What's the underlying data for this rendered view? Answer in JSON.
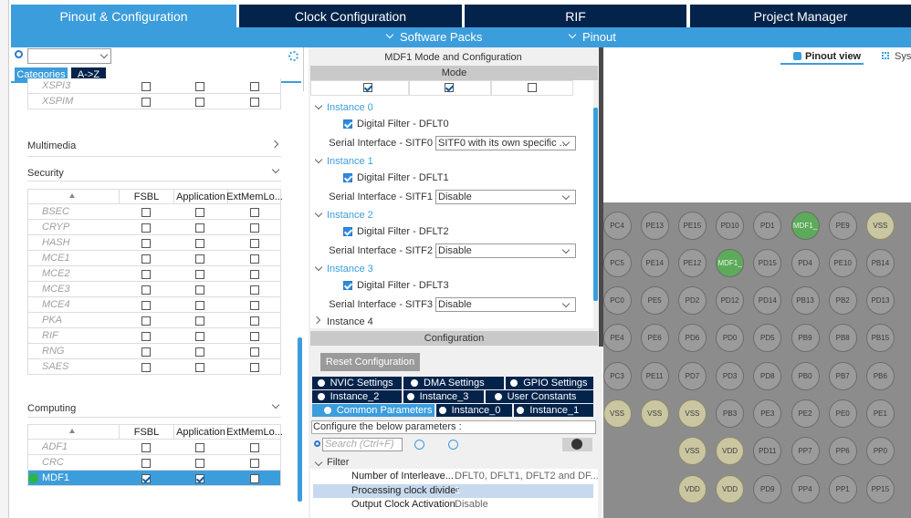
{
  "tabs": [
    "Pinout & Configuration",
    "Clock Configuration",
    "RIF",
    "Project Manager"
  ],
  "subtabs": [
    "Software Packs",
    "Pinout"
  ],
  "left": {
    "view_tabs": [
      "Categories",
      "A->Z"
    ],
    "prev_rows": [
      "XSPI3",
      "XSPIM"
    ],
    "multimedia": "Multimedia",
    "security": {
      "title": "Security",
      "columns": [
        "FSBL",
        "Application",
        "ExtMemLo..."
      ],
      "rows": [
        "BSEC",
        "CRYP",
        "HASH",
        "MCE1",
        "MCE2",
        "MCE3",
        "MCE4",
        "PKA",
        "RIF",
        "RNG",
        "SAES"
      ]
    },
    "computing": {
      "title": "Computing",
      "columns": [
        "FSBL",
        "Application",
        "ExtMemLo..."
      ],
      "rows": [
        "ADF1",
        "CRC",
        "MDF1"
      ]
    }
  },
  "middle": {
    "title": "MDF1 Mode and Configuration",
    "mode": "Mode",
    "instances": [
      {
        "title": "Instance 0",
        "filter": "Digital Filter - DFLT0",
        "serial_label": "Serial Interface - SITF0",
        "serial_value": "SITF0 with its own specific ..."
      },
      {
        "title": "Instance 1",
        "filter": "Digital Filter - DFLT1",
        "serial_label": "Serial Interface - SITF1",
        "serial_value": "Disable"
      },
      {
        "title": "Instance 2",
        "filter": "Digital Filter - DFLT2",
        "serial_label": "Serial Interface - SITF2",
        "serial_value": "Disable"
      },
      {
        "title": "Instance 3",
        "filter": "Digital Filter - DFLT3",
        "serial_label": "Serial Interface - SITF3",
        "serial_value": "Disable"
      }
    ],
    "instance_4": "Instance 4",
    "configuration": "Configuration",
    "reset": "Reset Configuration",
    "config_tabs": [
      [
        "NVIC Settings",
        "DMA Settings",
        "GPIO Settings"
      ],
      [
        "Instance_2",
        "Instance_3",
        "User Constants"
      ],
      [
        "Common Parameters",
        "Instance_0",
        "Instance_1"
      ]
    ],
    "hint": "Configure the below parameters :",
    "search_placeholder": "Search (Ctrl+F)",
    "group": "Filter",
    "params": [
      [
        "Number of Interleave...",
        "DFLT0, DFLT1, DFLT2 and DF..."
      ],
      [
        "Processing clock divider",
        "1"
      ],
      [
        "Output Clock Activation",
        "Disable"
      ]
    ]
  },
  "right": {
    "views": [
      "Pinout view",
      "Syst"
    ],
    "pins": [
      [
        "PC4",
        "PE13",
        "PE15",
        "PD10",
        "PD1",
        "MDF1_",
        "PE9",
        "VSS"
      ],
      [
        "PC5",
        "PE14",
        "PE12",
        "MDF1_",
        "PD15",
        "PD4",
        "PE10",
        "PB14"
      ],
      [
        "PC0",
        "PE5",
        "PD2",
        "PD12",
        "PD14",
        "PB13",
        "PB2",
        "PD13"
      ],
      [
        "PE4",
        "PE6",
        "PD6",
        "PD0",
        "PD5",
        "PB9",
        "PB8",
        "PB15"
      ],
      [
        "PC3",
        "PE11",
        "PD7",
        "PD3",
        "PD8",
        "PB0",
        "PB7",
        "PB6"
      ],
      [
        "VSS",
        "VSS",
        "VSS",
        "PB3",
        "PE3",
        "PE2",
        "PE0",
        "PE1"
      ],
      [
        null,
        null,
        "VSS",
        "VDD",
        "PD11",
        "PP7",
        "PP6",
        "PP0"
      ],
      [
        null,
        null,
        "VDD",
        "VDD",
        "PD9",
        "PP4",
        "PP1",
        "PP15"
      ]
    ]
  }
}
